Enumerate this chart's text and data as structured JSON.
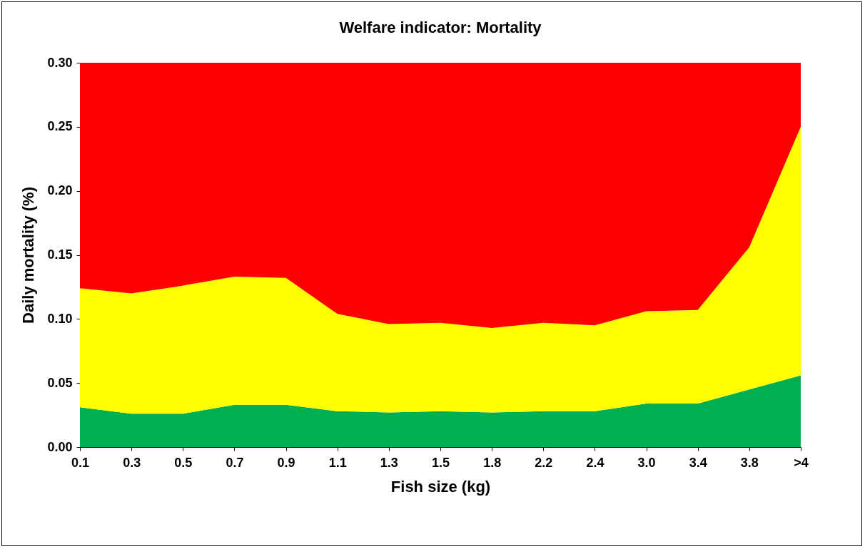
{
  "chart_data": {
    "type": "area",
    "title": "Welfare indicator: Mortality",
    "xlabel": "Fish size (kg)",
    "ylabel": "Daily mortality (%)",
    "categories": [
      "0.1",
      "0.3",
      "0.5",
      "0.7",
      "0.9",
      "1.1",
      "1.3",
      "1.5",
      "1.8",
      "2.2",
      "2.4",
      "3.0",
      "3.4",
      "3.8",
      ">4"
    ],
    "stacked": true,
    "series": [
      {
        "color": "#00b050",
        "values": [
          0.031,
          0.026,
          0.026,
          0.033,
          0.033,
          0.028,
          0.027,
          0.028,
          0.027,
          0.028,
          0.028,
          0.034,
          0.034,
          0.045,
          0.056
        ]
      },
      {
        "color": "#ffff00",
        "values": [
          0.093,
          0.094,
          0.1,
          0.1,
          0.099,
          0.076,
          0.069,
          0.069,
          0.066,
          0.069,
          0.067,
          0.072,
          0.073,
          0.111,
          0.194
        ]
      },
      {
        "color": "#ff0000",
        "values": [
          0.176,
          0.18,
          0.174,
          0.167,
          0.168,
          0.196,
          0.204,
          0.203,
          0.207,
          0.203,
          0.205,
          0.194,
          0.193,
          0.144,
          0.05
        ]
      }
    ],
    "ylim": [
      0,
      0.3
    ],
    "yticks": [
      {
        "value": 0,
        "label": "0.00"
      },
      {
        "value": 0.05,
        "label": "0.05"
      },
      {
        "value": 0.1,
        "label": "0.10"
      },
      {
        "value": 0.15,
        "label": "0.15"
      },
      {
        "value": 0.2,
        "label": "0.20"
      },
      {
        "value": 0.25,
        "label": "0.25"
      },
      {
        "value": 0.3,
        "label": "0.30"
      }
    ],
    "grid": false,
    "legend": false
  }
}
